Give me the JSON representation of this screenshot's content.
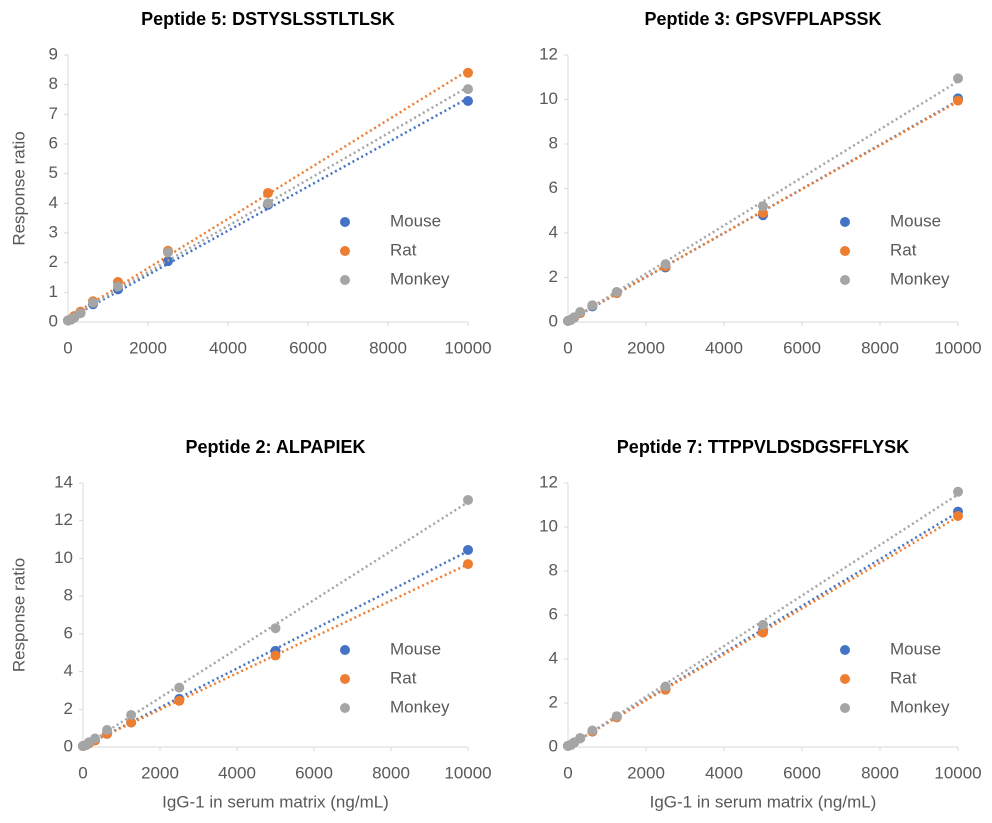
{
  "chart_data": [
    {
      "type": "scatter",
      "title": "Peptide 5: DSTYSLSSTLTLSK",
      "y_label": "Response ratio",
      "x": [
        0,
        78,
        156,
        312,
        625,
        1250,
        2500,
        5000,
        10000
      ],
      "series": [
        {
          "name": "Mouse",
          "color": "#4472c4",
          "values": [
            0.05,
            0.08,
            0.15,
            0.3,
            0.6,
            1.1,
            2.05,
            3.95,
            7.45
          ]
        },
        {
          "name": "Rat",
          "color": "#ed7d31",
          "values": [
            0.05,
            0.1,
            0.2,
            0.35,
            0.7,
            1.35,
            2.4,
            4.35,
            8.4
          ]
        },
        {
          "name": "Monkey",
          "color": "#a5a5a5",
          "values": [
            0.05,
            0.08,
            0.15,
            0.3,
            0.65,
            1.2,
            2.35,
            4.0,
            7.85
          ]
        }
      ],
      "xlim": [
        0,
        10000
      ],
      "xticks": [
        0,
        2000,
        4000,
        6000,
        8000,
        10000
      ],
      "ylim": [
        0,
        9
      ],
      "yticks": [
        0,
        1,
        2,
        3,
        4,
        5,
        6,
        7,
        8,
        9
      ],
      "trendline": "linear",
      "legend": "right"
    },
    {
      "type": "scatter",
      "title": "Peptide 3: GPSVFPLAPSSK",
      "x": [
        0,
        78,
        156,
        312,
        625,
        1250,
        2500,
        5000,
        10000
      ],
      "series": [
        {
          "name": "Mouse",
          "color": "#4472c4",
          "values": [
            0.05,
            0.1,
            0.2,
            0.4,
            0.7,
            1.3,
            2.45,
            4.8,
            10.05
          ]
        },
        {
          "name": "Rat",
          "color": "#ed7d31",
          "values": [
            0.05,
            0.1,
            0.2,
            0.4,
            0.75,
            1.3,
            2.5,
            4.9,
            9.95
          ]
        },
        {
          "name": "Monkey",
          "color": "#a5a5a5",
          "values": [
            0.05,
            0.1,
            0.2,
            0.45,
            0.75,
            1.35,
            2.6,
            5.2,
            10.95
          ]
        }
      ],
      "xlim": [
        0,
        10000
      ],
      "xticks": [
        0,
        2000,
        4000,
        6000,
        8000,
        10000
      ],
      "ylim": [
        0,
        12
      ],
      "yticks": [
        0,
        2,
        4,
        6,
        8,
        10,
        12
      ],
      "trendline": "linear",
      "legend": "right"
    },
    {
      "type": "scatter",
      "title": "Peptide 2: ALPAPIEK",
      "y_label": "Response ratio",
      "x_label": "IgG-1 in serum matrix (ng/mL)",
      "x": [
        0,
        78,
        156,
        312,
        625,
        1250,
        2500,
        5000,
        10000
      ],
      "series": [
        {
          "name": "Mouse",
          "color": "#4472c4",
          "values": [
            0.05,
            0.1,
            0.2,
            0.35,
            0.7,
            1.3,
            2.55,
            5.1,
            10.45
          ]
        },
        {
          "name": "Rat",
          "color": "#ed7d31",
          "values": [
            0.05,
            0.1,
            0.2,
            0.35,
            0.7,
            1.3,
            2.45,
            4.85,
            9.7
          ]
        },
        {
          "name": "Monkey",
          "color": "#a5a5a5",
          "values": [
            0.05,
            0.1,
            0.25,
            0.45,
            0.9,
            1.7,
            3.15,
            6.3,
            13.1
          ]
        }
      ],
      "xlim": [
        0,
        10000
      ],
      "xticks": [
        0,
        2000,
        4000,
        6000,
        8000,
        10000
      ],
      "ylim": [
        0,
        14
      ],
      "yticks": [
        0,
        2,
        4,
        6,
        8,
        10,
        12,
        14
      ],
      "trendline": "linear",
      "legend": "right"
    },
    {
      "type": "scatter",
      "title": "Peptide 7: TTPPVLDSDGSFFLYSK",
      "x_label": "IgG-1 in serum matrix (ng/mL)",
      "x": [
        0,
        78,
        156,
        312,
        625,
        1250,
        2500,
        5000,
        10000
      ],
      "series": [
        {
          "name": "Mouse",
          "color": "#4472c4",
          "values": [
            0.05,
            0.1,
            0.2,
            0.4,
            0.7,
            1.35,
            2.65,
            5.3,
            10.7
          ]
        },
        {
          "name": "Rat",
          "color": "#ed7d31",
          "values": [
            0.05,
            0.1,
            0.2,
            0.4,
            0.7,
            1.35,
            2.6,
            5.2,
            10.5
          ]
        },
        {
          "name": "Monkey",
          "color": "#a5a5a5",
          "values": [
            0.05,
            0.1,
            0.2,
            0.4,
            0.75,
            1.4,
            2.75,
            5.55,
            11.6
          ]
        }
      ],
      "xlim": [
        0,
        10000
      ],
      "xticks": [
        0,
        2000,
        4000,
        6000,
        8000,
        10000
      ],
      "ylim": [
        0,
        12
      ],
      "yticks": [
        0,
        2,
        4,
        6,
        8,
        10,
        12
      ],
      "trendline": "linear",
      "legend": "right"
    }
  ]
}
